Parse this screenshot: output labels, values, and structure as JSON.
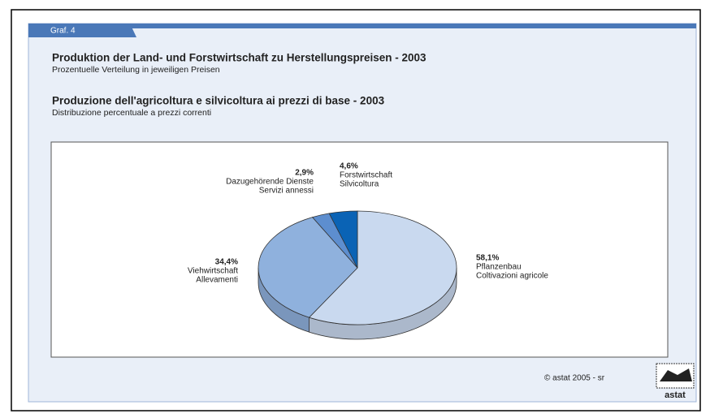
{
  "chart_data": {
    "type": "pie3d",
    "tab": "Graf. 4",
    "title": "Produktion der Land- und Forstwirtschaft zu Herstellungspreisen - 2003",
    "subtitle": "Prozentuelle Verteilung in jeweiligen Preisen",
    "title_it": "Produzione dell'agricoltura e silvicoltura ai prezzi di base - 2003",
    "subtitle_it": "Distribuzione percentuale a prezzi correnti",
    "categories": [
      "Pflanzenbau",
      "Viehwirtschaft",
      "Dazugehörende Dienste",
      "Forstwirtschaft"
    ],
    "categories_it": [
      "Coltivazioni agricole",
      "Allevamenti",
      "Servizi annessi",
      "Silvicoltura"
    ],
    "values": [
      58.1,
      34.4,
      2.9,
      4.6
    ],
    "value_labels": [
      "58,1%",
      "34,4%",
      "2,9%",
      "4,6%"
    ],
    "colors": [
      "#c9d9ef",
      "#8fb1dd",
      "#5d8ecf",
      "#0a63b5"
    ],
    "footer": "© astat 2005 - sr",
    "logo": "astat"
  }
}
